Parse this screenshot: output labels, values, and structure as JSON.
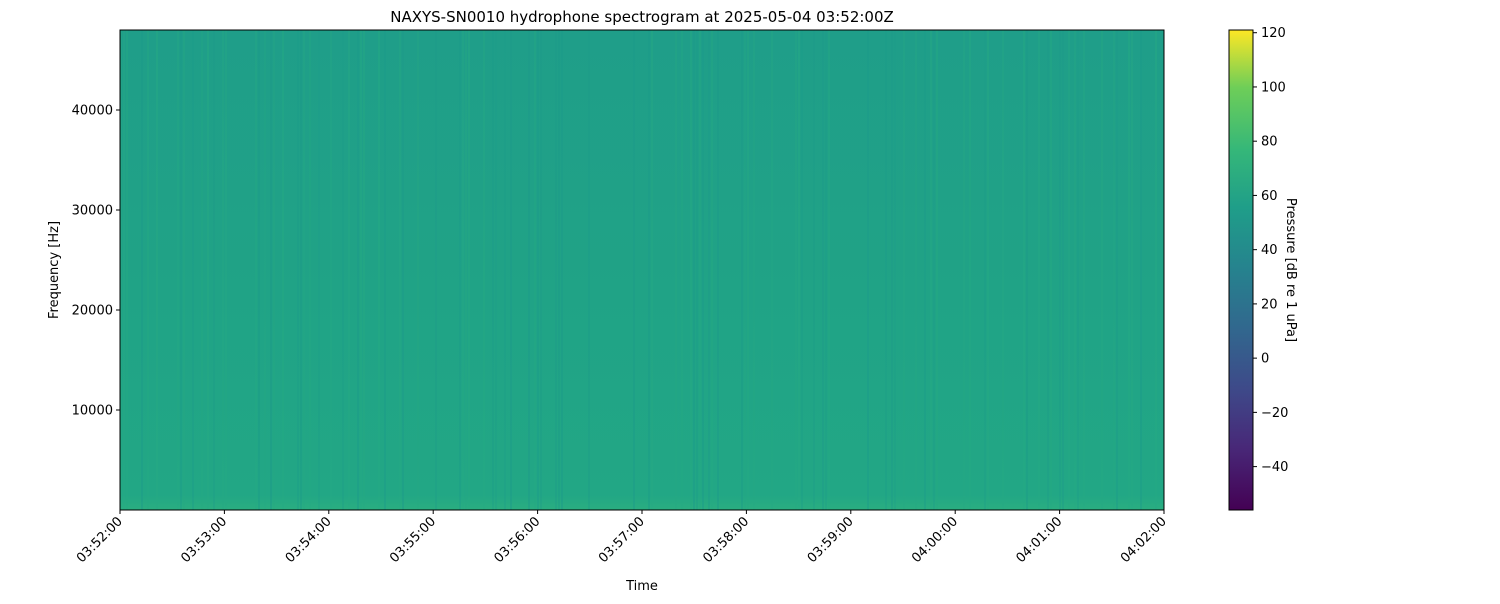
{
  "chart_data": {
    "type": "heatmap",
    "title": "NAXYS-SN0010 hydrophone spectrogram at 2025-05-04 03:52:00Z",
    "xlabel": "Time",
    "ylabel": "Frequency [Hz]",
    "x_ticks": [
      "03:52:00",
      "03:53:00",
      "03:54:00",
      "03:55:00",
      "03:56:00",
      "03:57:00",
      "03:58:00",
      "03:59:00",
      "04:00:00",
      "04:01:00",
      "04:02:00"
    ],
    "xlim": [
      "03:52:00",
      "04:02:00"
    ],
    "y_ticks": [
      10000,
      20000,
      30000,
      40000
    ],
    "ylim": [
      0,
      48000
    ],
    "colorbar": {
      "label": "Pressure [dB re 1 uPa]",
      "ticks": [
        -40,
        -20,
        0,
        20,
        40,
        60,
        80,
        100,
        120
      ],
      "range": [
        -56,
        121
      ],
      "colormap": "viridis"
    },
    "typical_level_db": {
      "high_freq": 48,
      "low_freq": 52
    },
    "colors": {
      "high_freq": "#1f9e89",
      "low_freq": "#22a785",
      "bottom_edge": "#2aae80"
    },
    "grid": false
  }
}
